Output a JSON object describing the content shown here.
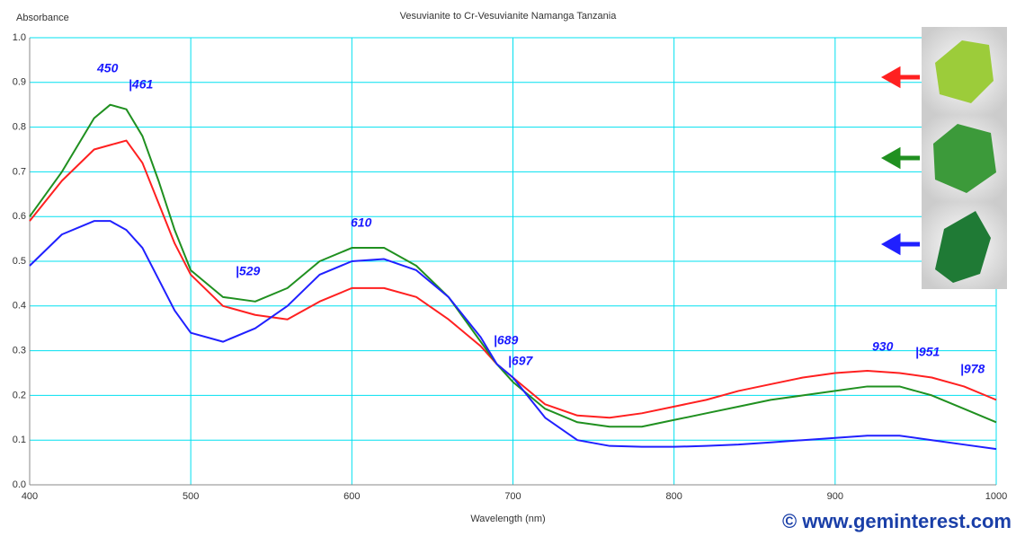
{
  "chart_data": {
    "type": "line",
    "title": "Vesuvianite to Cr-Vesuvianite Namanga Tanzania",
    "y_label": "Absorbance",
    "x_label": "Wavelength (nm)",
    "watermark": "© www.geminterest.com",
    "annotations": [
      "450",
      "|461",
      "|529",
      "610",
      "|689",
      "|697",
      "930",
      "|951",
      "|978"
    ],
    "x": [
      400,
      420,
      440,
      450,
      460,
      470,
      480,
      490,
      500,
      520,
      540,
      560,
      580,
      600,
      620,
      640,
      660,
      680,
      690,
      700,
      720,
      740,
      760,
      780,
      800,
      820,
      840,
      860,
      880,
      900,
      920,
      940,
      960,
      980,
      1000
    ],
    "series": [
      {
        "color": "#ff2020",
        "values": [
          0.59,
          0.68,
          0.75,
          0.76,
          0.77,
          0.72,
          0.63,
          0.54,
          0.47,
          0.4,
          0.38,
          0.37,
          0.41,
          0.44,
          0.44,
          0.42,
          0.37,
          0.31,
          0.27,
          0.24,
          0.18,
          0.155,
          0.15,
          0.16,
          0.175,
          0.19,
          0.21,
          0.225,
          0.24,
          0.25,
          0.255,
          0.25,
          0.24,
          0.22,
          0.19
        ]
      },
      {
        "color": "#209020",
        "values": [
          0.6,
          0.7,
          0.82,
          0.85,
          0.84,
          0.78,
          0.68,
          0.57,
          0.48,
          0.42,
          0.41,
          0.44,
          0.5,
          0.53,
          0.53,
          0.49,
          0.42,
          0.32,
          0.27,
          0.23,
          0.17,
          0.14,
          0.13,
          0.13,
          0.145,
          0.16,
          0.175,
          0.19,
          0.2,
          0.21,
          0.22,
          0.22,
          0.2,
          0.17,
          0.14
        ]
      },
      {
        "color": "#2020ff",
        "values": [
          0.49,
          0.56,
          0.59,
          0.59,
          0.57,
          0.53,
          0.46,
          0.39,
          0.34,
          0.32,
          0.35,
          0.4,
          0.47,
          0.5,
          0.505,
          0.48,
          0.42,
          0.33,
          0.27,
          0.24,
          0.15,
          0.1,
          0.087,
          0.085,
          0.085,
          0.087,
          0.09,
          0.095,
          0.1,
          0.105,
          0.11,
          0.11,
          0.1,
          0.09,
          0.08
        ]
      }
    ],
    "xlim": [
      400,
      1000
    ],
    "ylim": [
      0,
      1
    ],
    "xticks": [
      400,
      500,
      600,
      700,
      800,
      900,
      1000
    ],
    "yticks": [
      {
        "value": 0,
        "label": "0.0"
      },
      0.1,
      0.2,
      0.3,
      0.4,
      0.5,
      0.6,
      0.7,
      0.8,
      0.9,
      {
        "value": 1,
        "label": "1.0"
      }
    ],
    "grid": true,
    "grid_color": "#00e0f0"
  }
}
